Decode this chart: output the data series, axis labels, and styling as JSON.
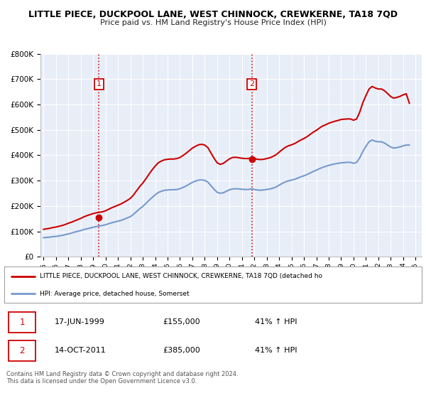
{
  "title": "LITTLE PIECE, DUCKPOOL LANE, WEST CHINNOCK, CREWKERNE, TA18 7QD",
  "subtitle": "Price paid vs. HM Land Registry's House Price Index (HPI)",
  "ylim": [
    0,
    800000
  ],
  "yticks": [
    0,
    100000,
    200000,
    300000,
    400000,
    500000,
    600000,
    700000,
    800000
  ],
  "ytick_labels": [
    "£0",
    "£100K",
    "£200K",
    "£300K",
    "£400K",
    "£500K",
    "£600K",
    "£700K",
    "£800K"
  ],
  "plot_bg_color": "#e8eef8",
  "red_line_color": "#cc0000",
  "blue_line_color": "#7799cc",
  "vline_color": "#cc0000",
  "marker_color": "#cc0000",
  "label_color": "#cc0000",
  "legend_line1": "LITTLE PIECE, DUCKPOOL LANE, WEST CHINNOCK, CREWKERNE, TA18 7QD (detached ho",
  "legend_line2": "HPI: Average price, detached house, Somerset",
  "purchase1_date": "17-JUN-1999",
  "purchase1_price": 155000,
  "purchase1_pct": "41% ↑ HPI",
  "purchase1_year": 1999.46,
  "purchase2_date": "14-OCT-2011",
  "purchase2_price": 385000,
  "purchase2_pct": "41% ↑ HPI",
  "purchase2_year": 2011.79,
  "footer1": "Contains HM Land Registry data © Crown copyright and database right 2024.",
  "footer2": "This data is licensed under the Open Government Licence v3.0.",
  "hpi_x": [
    1995.0,
    1995.25,
    1995.5,
    1995.75,
    1996.0,
    1996.25,
    1996.5,
    1996.75,
    1997.0,
    1997.25,
    1997.5,
    1997.75,
    1998.0,
    1998.25,
    1998.5,
    1998.75,
    1999.0,
    1999.25,
    1999.5,
    1999.75,
    2000.0,
    2000.25,
    2000.5,
    2000.75,
    2001.0,
    2001.25,
    2001.5,
    2001.75,
    2002.0,
    2002.25,
    2002.5,
    2002.75,
    2003.0,
    2003.25,
    2003.5,
    2003.75,
    2004.0,
    2004.25,
    2004.5,
    2004.75,
    2005.0,
    2005.25,
    2005.5,
    2005.75,
    2006.0,
    2006.25,
    2006.5,
    2006.75,
    2007.0,
    2007.25,
    2007.5,
    2007.75,
    2008.0,
    2008.25,
    2008.5,
    2008.75,
    2009.0,
    2009.25,
    2009.5,
    2009.75,
    2010.0,
    2010.25,
    2010.5,
    2010.75,
    2011.0,
    2011.25,
    2011.5,
    2011.75,
    2012.0,
    2012.25,
    2012.5,
    2012.75,
    2013.0,
    2013.25,
    2013.5,
    2013.75,
    2014.0,
    2014.25,
    2014.5,
    2014.75,
    2015.0,
    2015.25,
    2015.5,
    2015.75,
    2016.0,
    2016.25,
    2016.5,
    2016.75,
    2017.0,
    2017.25,
    2017.5,
    2017.75,
    2018.0,
    2018.25,
    2018.5,
    2018.75,
    2019.0,
    2019.25,
    2019.5,
    2019.75,
    2020.0,
    2020.25,
    2020.5,
    2020.75,
    2021.0,
    2021.25,
    2021.5,
    2021.75,
    2022.0,
    2022.25,
    2022.5,
    2022.75,
    2023.0,
    2023.25,
    2023.5,
    2023.75,
    2024.0,
    2024.25,
    2024.5
  ],
  "hpi_y": [
    75000,
    76000,
    77000,
    79000,
    80000,
    82000,
    84000,
    87000,
    90000,
    93000,
    97000,
    100000,
    103000,
    107000,
    110000,
    113000,
    116000,
    119000,
    121000,
    123000,
    126000,
    130000,
    134000,
    137000,
    140000,
    143000,
    148000,
    153000,
    158000,
    167000,
    178000,
    189000,
    198000,
    210000,
    222000,
    233000,
    244000,
    253000,
    258000,
    262000,
    263000,
    264000,
    264000,
    265000,
    268000,
    273000,
    279000,
    286000,
    293000,
    298000,
    302000,
    303000,
    301000,
    294000,
    280000,
    266000,
    254000,
    250000,
    252000,
    258000,
    264000,
    267000,
    268000,
    267000,
    266000,
    265000,
    265000,
    267000,
    265000,
    263000,
    262000,
    263000,
    265000,
    267000,
    270000,
    275000,
    282000,
    289000,
    295000,
    299000,
    302000,
    305000,
    310000,
    315000,
    319000,
    324000,
    330000,
    336000,
    341000,
    347000,
    352000,
    356000,
    360000,
    363000,
    366000,
    368000,
    370000,
    371000,
    372000,
    372000,
    368000,
    372000,
    390000,
    415000,
    435000,
    453000,
    460000,
    455000,
    453000,
    453000,
    448000,
    440000,
    432000,
    428000,
    430000,
    433000,
    437000,
    440000,
    440000
  ],
  "red_x": [
    1995.0,
    1995.25,
    1995.5,
    1995.75,
    1996.0,
    1996.25,
    1996.5,
    1996.75,
    1997.0,
    1997.25,
    1997.5,
    1997.75,
    1998.0,
    1998.25,
    1998.5,
    1998.75,
    1999.0,
    1999.25,
    1999.5,
    1999.75,
    2000.0,
    2000.25,
    2000.5,
    2000.75,
    2001.0,
    2001.25,
    2001.5,
    2001.75,
    2002.0,
    2002.25,
    2002.5,
    2002.75,
    2003.0,
    2003.25,
    2003.5,
    2003.75,
    2004.0,
    2004.25,
    2004.5,
    2004.75,
    2005.0,
    2005.25,
    2005.5,
    2005.75,
    2006.0,
    2006.25,
    2006.5,
    2006.75,
    2007.0,
    2007.25,
    2007.5,
    2007.75,
    2008.0,
    2008.25,
    2008.5,
    2008.75,
    2009.0,
    2009.25,
    2009.5,
    2009.75,
    2010.0,
    2010.25,
    2010.5,
    2010.75,
    2011.0,
    2011.25,
    2011.5,
    2011.75,
    2012.0,
    2012.25,
    2012.5,
    2012.75,
    2013.0,
    2013.25,
    2013.5,
    2013.75,
    2014.0,
    2014.25,
    2014.5,
    2014.75,
    2015.0,
    2015.25,
    2015.5,
    2015.75,
    2016.0,
    2016.25,
    2016.5,
    2016.75,
    2017.0,
    2017.25,
    2017.5,
    2017.75,
    2018.0,
    2018.25,
    2018.5,
    2018.75,
    2019.0,
    2019.25,
    2019.5,
    2019.75,
    2020.0,
    2020.25,
    2020.5,
    2020.75,
    2021.0,
    2021.25,
    2021.5,
    2021.75,
    2022.0,
    2022.25,
    2022.5,
    2022.75,
    2023.0,
    2023.25,
    2023.5,
    2023.75,
    2024.0,
    2024.25,
    2024.5
  ],
  "red_y": [
    108000,
    110000,
    112000,
    115000,
    117000,
    120000,
    123000,
    127000,
    132000,
    136000,
    141000,
    146000,
    151000,
    157000,
    162000,
    166000,
    170000,
    173000,
    175000,
    177000,
    181000,
    187000,
    193000,
    198000,
    203000,
    208000,
    215000,
    222000,
    230000,
    243000,
    260000,
    276000,
    290000,
    307000,
    325000,
    342000,
    357000,
    370000,
    377000,
    382000,
    384000,
    385000,
    385000,
    387000,
    391000,
    399000,
    408000,
    418000,
    428000,
    435000,
    441000,
    443000,
    440000,
    430000,
    409000,
    388000,
    370000,
    364000,
    368000,
    377000,
    386000,
    391000,
    392000,
    390000,
    388000,
    387000,
    387000,
    390000,
    387000,
    384000,
    383000,
    384000,
    387000,
    390000,
    395000,
    402000,
    412000,
    422000,
    431000,
    437000,
    441000,
    446000,
    453000,
    460000,
    466000,
    473000,
    482000,
    491000,
    498000,
    507000,
    515000,
    520000,
    526000,
    530000,
    534000,
    537000,
    541000,
    542000,
    543000,
    543000,
    538000,
    543000,
    570000,
    607000,
    635000,
    661000,
    671000,
    665000,
    661000,
    661000,
    654000,
    643000,
    631000,
    625000,
    628000,
    632000,
    638000,
    642000,
    605000
  ]
}
